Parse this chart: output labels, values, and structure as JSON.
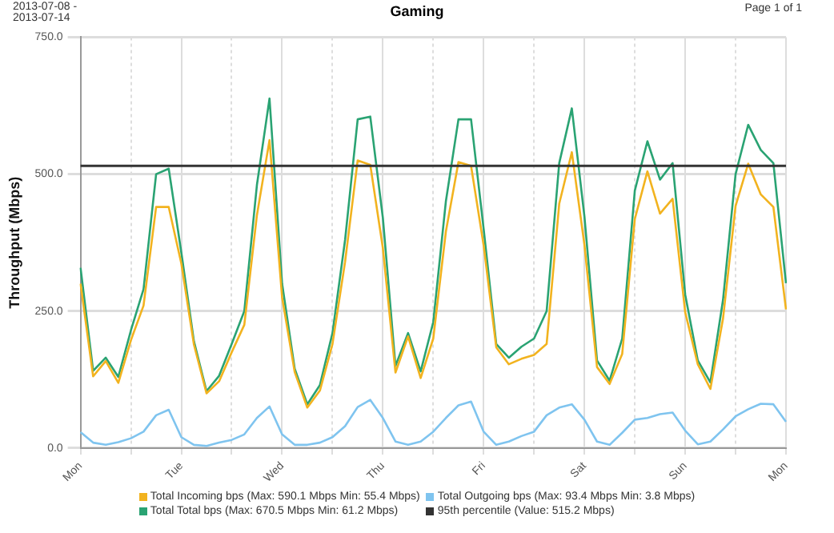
{
  "chart_data": {
    "type": "line",
    "title": "Gaming",
    "subtitle": "2013-07-08 - 2013-07-14",
    "ylabel": "Throughput (Mbps)",
    "annotations": [
      "Page 1 of 1"
    ],
    "categories": [
      "Mon",
      null,
      null,
      null,
      null,
      null,
      null,
      null,
      "Tue",
      null,
      null,
      null,
      null,
      null,
      null,
      null,
      "Wed",
      null,
      null,
      null,
      null,
      null,
      null,
      null,
      "Thu",
      null,
      null,
      null,
      null,
      null,
      null,
      null,
      "Fri",
      null,
      null,
      null,
      null,
      null,
      null,
      null,
      "Sat",
      null,
      null,
      null,
      null,
      null,
      null,
      null,
      "Sun",
      null,
      null,
      null,
      null,
      null,
      null,
      null,
      "Mon"
    ],
    "series": [
      {
        "name": "Total Incoming bps (Max: 590.1 Mbps Min: 55.4 Mbps)",
        "color": "#f2b31f",
        "values": [
          300,
          131,
          159,
          119,
          197,
          260,
          440,
          440,
          337,
          189,
          100,
          122,
          175,
          225,
          425,
          562,
          275,
          139,
          74,
          105,
          190,
          340,
          525,
          517,
          365,
          138,
          204,
          128,
          200,
          395,
          522,
          515,
          370,
          184,
          153,
          163,
          170,
          190,
          446,
          540,
          371,
          148,
          117,
          172,
          418,
          505,
          428,
          455,
          248,
          153,
          108,
          236,
          442,
          519,
          463,
          440,
          253
        ]
      },
      {
        "name": "Total Outgoing bps (Max: 93.4 Mbps Min: 3.8 Mbps)",
        "color": "#7fc4ef",
        "values": [
          29,
          10,
          6,
          11,
          18,
          30,
          60,
          70,
          20,
          6,
          4,
          10,
          15,
          25,
          55,
          76,
          25,
          6,
          6,
          10,
          20,
          40,
          75,
          88,
          55,
          12,
          6,
          12,
          30,
          55,
          78,
          85,
          30,
          6,
          12,
          22,
          30,
          60,
          74,
          80,
          52,
          12,
          6,
          28,
          52,
          55,
          62,
          65,
          32,
          7,
          12,
          34,
          58,
          71,
          81,
          80,
          48
        ]
      },
      {
        "name": "Total Total bps (Max: 670.5 Mbps Min: 61.2 Mbps)",
        "color": "#2aa373",
        "values": [
          329,
          141,
          165,
          130,
          215,
          290,
          500,
          510,
          357,
          195,
          104,
          132,
          190,
          250,
          480,
          638,
          300,
          145,
          80,
          115,
          210,
          380,
          600,
          605,
          420,
          150,
          210,
          140,
          230,
          450,
          600,
          600,
          400,
          190,
          165,
          185,
          200,
          250,
          520,
          620,
          423,
          160,
          123,
          200,
          470,
          560,
          490,
          520,
          280,
          160,
          120,
          270,
          500,
          590,
          544,
          520,
          301
        ]
      }
    ],
    "ref_lines": [
      {
        "axis": "y",
        "value": 515.2,
        "label": "95th percentile (Value: 515.2 Mbps)",
        "color": "#333333"
      }
    ],
    "ylim": [
      0,
      750
    ],
    "yticks": [
      {
        "value": 0,
        "label": "0.0"
      },
      {
        "value": 250,
        "label": "250.0"
      },
      {
        "value": 500,
        "label": "500.0"
      },
      {
        "value": 750,
        "label": "750.0"
      }
    ],
    "grid": true,
    "legend": "bottom",
    "marker": "none",
    "line_style": "solid"
  }
}
